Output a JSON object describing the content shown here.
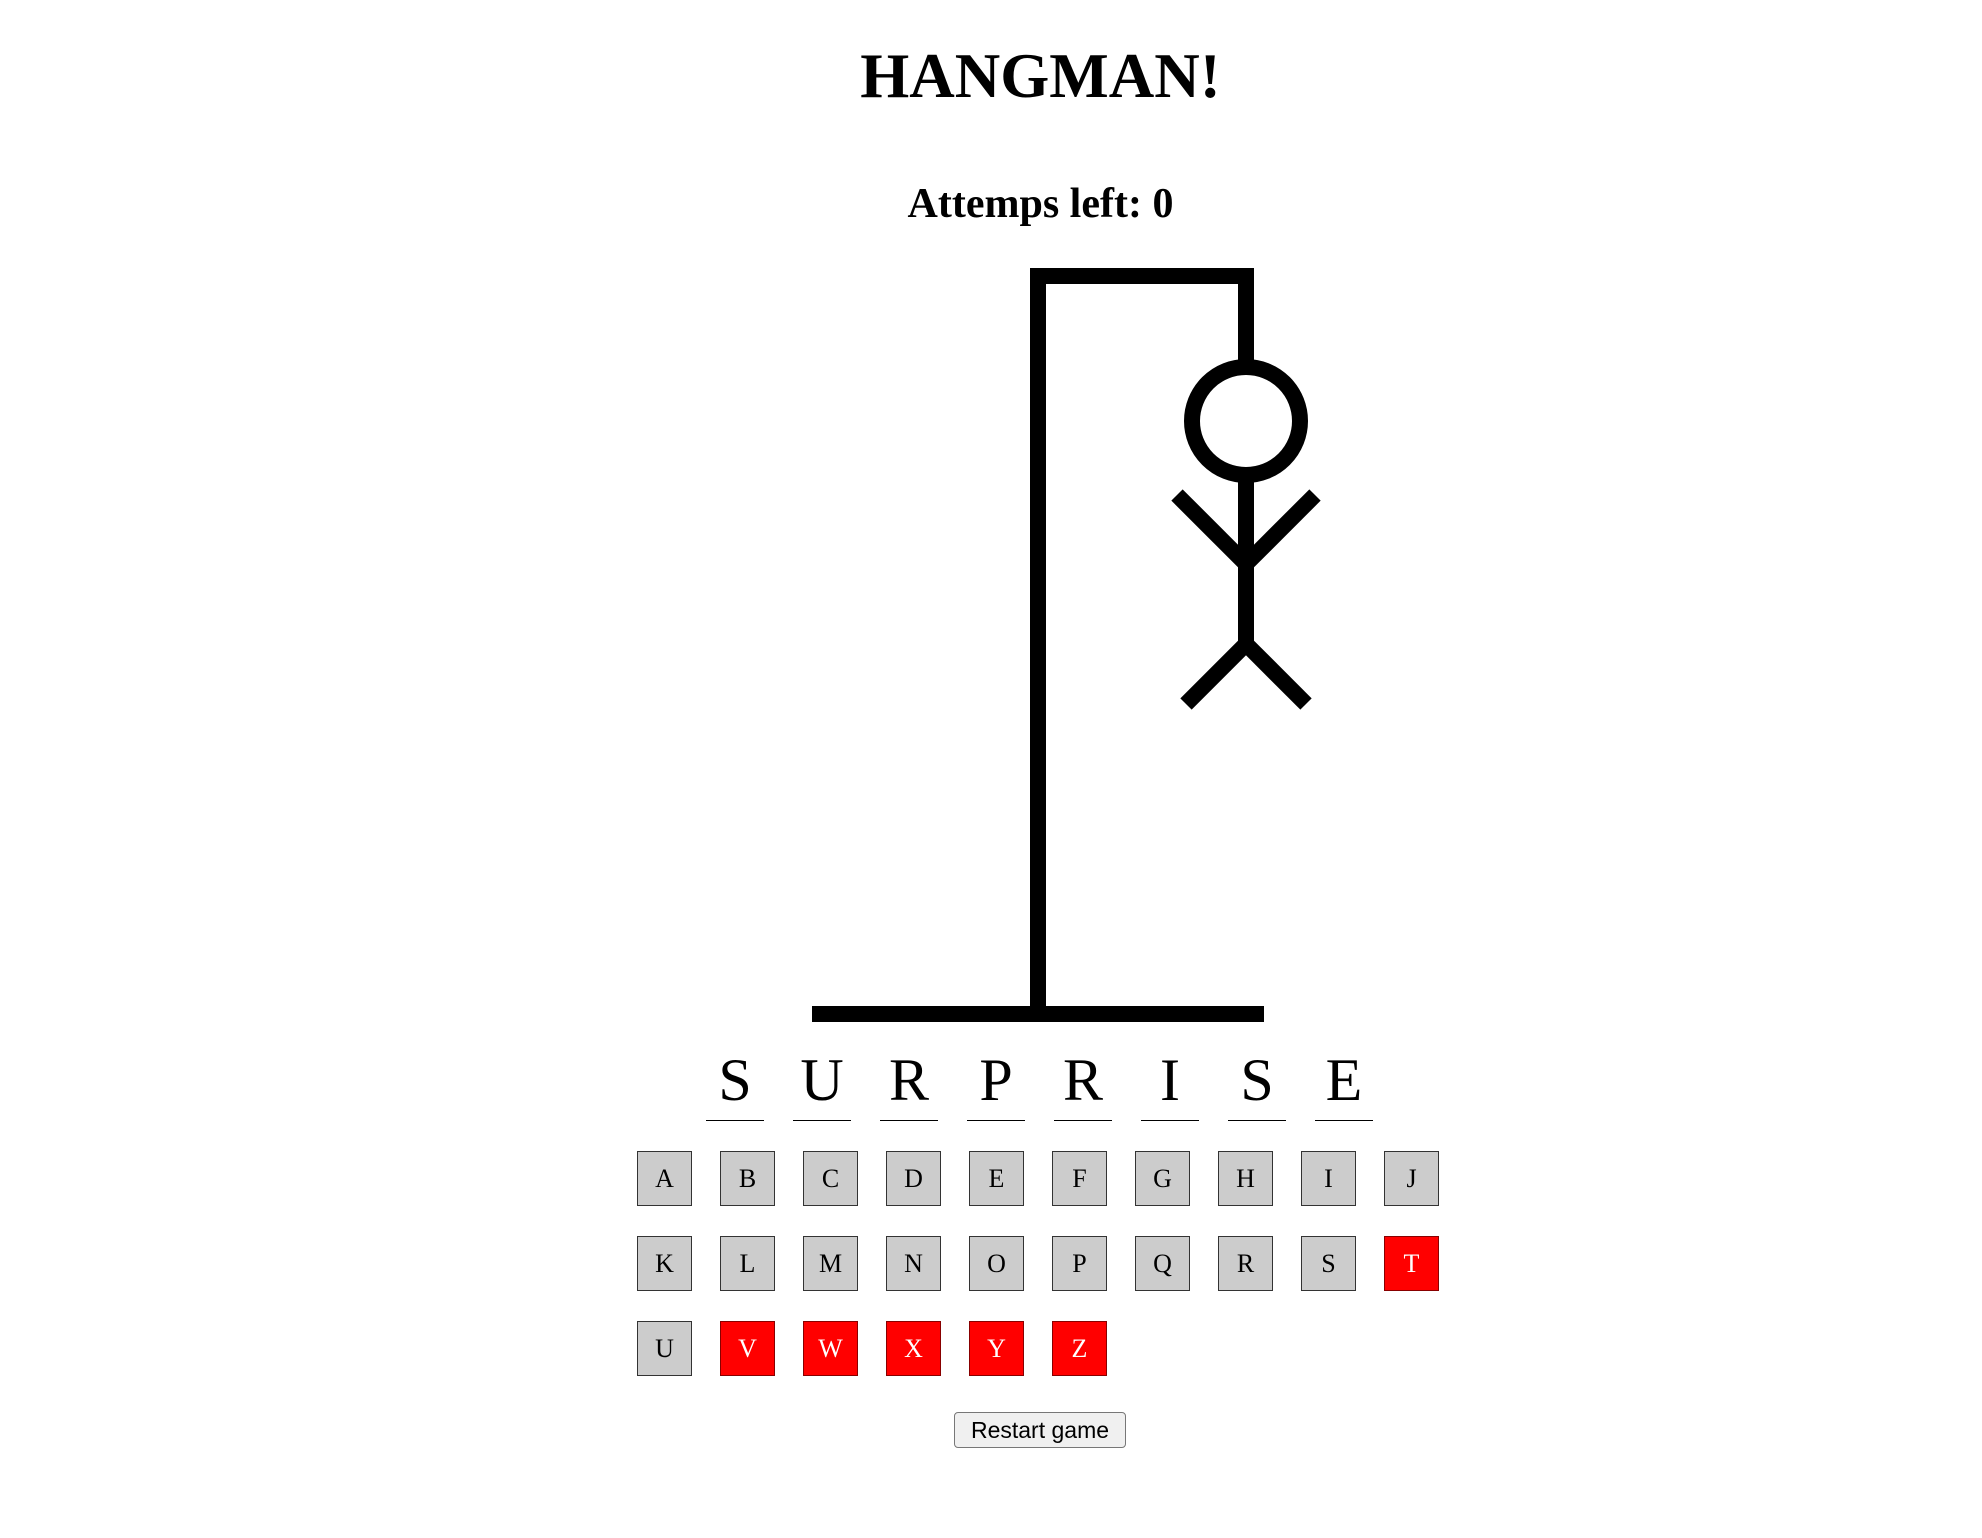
{
  "game": {
    "title": "HANGMAN!",
    "attempts_label": "Attemps left: ",
    "attempts_left": "0",
    "restart_label": "Restart game"
  },
  "word": [
    "S",
    "U",
    "R",
    "P",
    "R",
    "I",
    "S",
    "E"
  ],
  "keyboard": [
    {
      "letter": "A",
      "state": "unused"
    },
    {
      "letter": "B",
      "state": "unused"
    },
    {
      "letter": "C",
      "state": "unused"
    },
    {
      "letter": "D",
      "state": "unused"
    },
    {
      "letter": "E",
      "state": "unused"
    },
    {
      "letter": "F",
      "state": "unused"
    },
    {
      "letter": "G",
      "state": "unused"
    },
    {
      "letter": "H",
      "state": "unused"
    },
    {
      "letter": "I",
      "state": "unused"
    },
    {
      "letter": "J",
      "state": "unused"
    },
    {
      "letter": "K",
      "state": "unused"
    },
    {
      "letter": "L",
      "state": "unused"
    },
    {
      "letter": "M",
      "state": "unused"
    },
    {
      "letter": "N",
      "state": "unused"
    },
    {
      "letter": "O",
      "state": "unused"
    },
    {
      "letter": "P",
      "state": "unused"
    },
    {
      "letter": "Q",
      "state": "unused"
    },
    {
      "letter": "R",
      "state": "unused"
    },
    {
      "letter": "S",
      "state": "unused"
    },
    {
      "letter": "T",
      "state": "wrong"
    },
    {
      "letter": "U",
      "state": "unused"
    },
    {
      "letter": "V",
      "state": "wrong"
    },
    {
      "letter": "W",
      "state": "wrong"
    },
    {
      "letter": "X",
      "state": "wrong"
    },
    {
      "letter": "Y",
      "state": "wrong"
    },
    {
      "letter": "Z",
      "state": "wrong"
    }
  ],
  "colors": {
    "key_default": "#cccccc",
    "key_wrong": "#ff0000"
  }
}
